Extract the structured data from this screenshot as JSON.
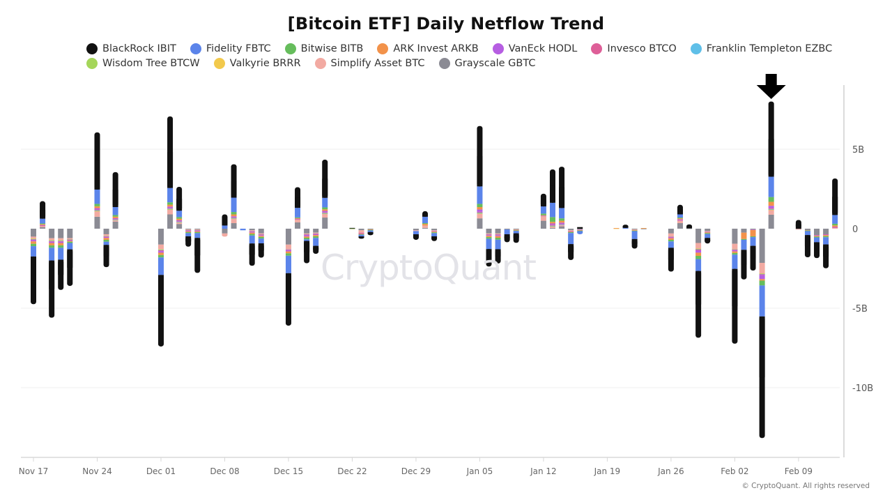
{
  "chart_data": {
    "type": "bar",
    "stacked": true,
    "title": "[Bitcoin ETF] Daily Netflow Trend",
    "xlabel": "",
    "ylabel": "",
    "ylim": [
      -14,
      8.5
    ],
    "y_ticks": [
      {
        "value": 5,
        "label": "5B"
      },
      {
        "value": 0,
        "label": "0"
      },
      {
        "value": -5,
        "label": "-5B"
      },
      {
        "value": -10,
        "label": "-10B"
      }
    ],
    "y_axis_position": "right",
    "x_ticks": [
      {
        "date": "11-17",
        "label": "Nov 17"
      },
      {
        "date": "11-24",
        "label": "Nov 24"
      },
      {
        "date": "12-01",
        "label": "Dec 01"
      },
      {
        "date": "12-08",
        "label": "Dec 08"
      },
      {
        "date": "12-15",
        "label": "Dec 15"
      },
      {
        "date": "12-22",
        "label": "Dec 22"
      },
      {
        "date": "12-29",
        "label": "Dec 29"
      },
      {
        "date": "01-05",
        "label": "Jan 05"
      },
      {
        "date": "01-12",
        "label": "Jan 12"
      },
      {
        "date": "01-19",
        "label": "Jan 19"
      },
      {
        "date": "01-26",
        "label": "Jan 26"
      },
      {
        "date": "02-02",
        "label": "Feb 02"
      },
      {
        "date": "02-09",
        "label": "Feb 09"
      }
    ],
    "grid": true,
    "legend_position": "top-left",
    "units": "USD",
    "series": [
      {
        "name": "BlackRock IBIT",
        "color": "#111111"
      },
      {
        "name": "Fidelity FBTC",
        "color": "#5b84ea"
      },
      {
        "name": "Bitwise BITB",
        "color": "#66bd5c"
      },
      {
        "name": "ARK Invest ARKB",
        "color": "#f2924a"
      },
      {
        "name": "VanEck HODL",
        "color": "#b65ee2"
      },
      {
        "name": "Invesco BTCO",
        "color": "#de5f98"
      },
      {
        "name": "Franklin Templeton EZBC",
        "color": "#5fbfe8"
      },
      {
        "name": "Wisdom Tree BTCW",
        "color": "#a5d65a"
      },
      {
        "name": "Valkyrie BRRR",
        "color": "#f2c94c"
      },
      {
        "name": "Simplify Asset BTC",
        "color": "#f2aaa2"
      },
      {
        "name": "Grayscale GBTC",
        "color": "#8b8b94"
      }
    ],
    "value_columns": [
      "date",
      "BlackRock IBIT",
      "Fidelity FBTC",
      "Bitwise BITB",
      "ARK Invest ARKB",
      "VanEck HODL",
      "Invesco BTCO",
      "Franklin Templeton EZBC",
      "Wisdom Tree BTCW",
      "Valkyrie BRRR",
      "Simplify Asset BTC",
      "Grayscale GBTC"
    ],
    "rows": [
      [
        "11-17",
        -3.0,
        -0.65,
        -0.15,
        -0.15,
        -0.08,
        -0.04,
        -0.02,
        -0.02,
        -0.02,
        -0.12,
        -0.5
      ],
      [
        "11-18",
        1.1,
        0.3,
        0.05,
        0.05,
        0.03,
        0.02,
        0,
        0,
        0,
        0.08,
        0.1
      ],
      [
        "11-19",
        -3.6,
        -0.8,
        -0.15,
        -0.15,
        -0.08,
        -0.04,
        -0.02,
        -0.02,
        -0.02,
        -0.12,
        -0.6
      ],
      [
        "11-20",
        -1.9,
        -0.75,
        -0.15,
        -0.15,
        -0.08,
        -0.04,
        -0.02,
        -0.02,
        -0.02,
        -0.12,
        -0.6
      ],
      [
        "11-21",
        -2.3,
        -0.4,
        -0.08,
        -0.05,
        -0.05,
        -0.03,
        -0.01,
        -0.01,
        -0.01,
        -0.06,
        -0.6
      ],
      [
        "11-24",
        3.6,
        0.9,
        0.15,
        0.12,
        0.08,
        0.05,
        0.02,
        0.02,
        0.02,
        0.35,
        0.75
      ],
      [
        "11-25",
        -1.4,
        -0.2,
        -0.12,
        -0.12,
        -0.06,
        -0.04,
        -0.01,
        -0.01,
        -0.01,
        -0.1,
        -0.35
      ],
      [
        "11-26",
        2.2,
        0.5,
        0.1,
        0.1,
        0.05,
        0.03,
        0.01,
        0.01,
        0.01,
        0.1,
        0.45
      ],
      [
        "12-01",
        -4.5,
        -1.1,
        -0.15,
        -0.15,
        -0.1,
        -0.05,
        -0.02,
        -0.02,
        -0.02,
        -0.3,
        -1.0
      ],
      [
        "12-02",
        4.5,
        0.9,
        0.15,
        0.12,
        0.08,
        0.05,
        0.02,
        0.02,
        0.02,
        0.3,
        0.9
      ],
      [
        "12-03",
        1.5,
        0.4,
        0.1,
        0.1,
        0.06,
        0.04,
        0.01,
        0.01,
        0.01,
        0.1,
        0.3
      ],
      [
        "12-04",
        -0.65,
        -0.2,
        -0.06,
        -0.05,
        -0.04,
        -0.03,
        -0.01,
        0,
        0,
        -0.04,
        -0.05
      ],
      [
        "12-05",
        -2.2,
        -0.3,
        -0.06,
        -0.05,
        -0.04,
        -0.03,
        -0.01,
        0,
        0,
        -0.04,
        -0.05
      ],
      [
        "12-08",
        0.7,
        0.2,
        0,
        0,
        0,
        0,
        0,
        0,
        0,
        -0.2,
        -0.3
      ],
      [
        "12-09",
        2.1,
        0.9,
        0.15,
        0.12,
        0.06,
        0.04,
        0.01,
        0.01,
        0.01,
        0.3,
        0.35
      ],
      [
        "12-10",
        0,
        -0.1,
        0,
        0,
        0,
        0,
        0,
        0,
        0,
        0,
        0
      ],
      [
        "12-11",
        -1.4,
        -0.5,
        -0.1,
        -0.08,
        -0.05,
        -0.04,
        -0.01,
        0,
        0,
        -0.05,
        -0.1
      ],
      [
        "12-12",
        -0.9,
        -0.3,
        -0.1,
        -0.07,
        -0.05,
        -0.04,
        -0.01,
        0,
        0,
        -0.05,
        -0.3
      ],
      [
        "12-15",
        -3.3,
        -1.1,
        -0.15,
        -0.12,
        -0.08,
        -0.04,
        -0.01,
        0,
        0,
        -0.3,
        -1.0
      ],
      [
        "12-16",
        1.3,
        0.6,
        0.05,
        0.03,
        0.02,
        0.01,
        0,
        0,
        0,
        0.2,
        0.4
      ],
      [
        "12-17",
        -1.4,
        -0.1,
        -0.1,
        -0.08,
        -0.08,
        -0.05,
        -0.01,
        0,
        0,
        -0.05,
        -0.3
      ],
      [
        "12-18",
        -0.5,
        -0.5,
        -0.1,
        -0.08,
        -0.05,
        -0.04,
        -0.01,
        0,
        0,
        -0.05,
        -0.25
      ],
      [
        "12-19",
        2.4,
        0.6,
        0.12,
        0.1,
        0.08,
        0.05,
        0.02,
        0.01,
        0.01,
        0.25,
        0.7
      ],
      [
        "12-22",
        0.03,
        0,
        0.01,
        0.01,
        0,
        0,
        0,
        0,
        0,
        0,
        0
      ],
      [
        "12-23",
        -0.15,
        -0.1,
        -0.03,
        -0.03,
        -0.02,
        -0.05,
        0,
        0,
        0,
        -0.15,
        -0.1
      ],
      [
        "12-24",
        -0.2,
        -0.1,
        -0.03,
        -0.03,
        0,
        0,
        0,
        0,
        0,
        0,
        -0.05
      ],
      [
        "12-29",
        -0.35,
        -0.2,
        0,
        0,
        0,
        0,
        0,
        0,
        0,
        -0.05,
        -0.1
      ],
      [
        "12-30",
        0.35,
        0.4,
        0.05,
        0.1,
        0,
        0,
        0,
        0,
        0,
        0.15,
        0.05
      ],
      [
        "12-31",
        -0.3,
        -0.2,
        -0.05,
        -0.05,
        -0.03,
        0,
        0,
        0,
        0,
        -0.05,
        -0.1
      ],
      [
        "01-05",
        3.8,
        1.1,
        0.2,
        0.15,
        0.15,
        0.05,
        0.02,
        0.02,
        0.02,
        0.3,
        0.65
      ],
      [
        "01-06",
        -1.1,
        -0.65,
        -0.1,
        -0.08,
        -0.05,
        -0.04,
        -0.01,
        0,
        0,
        -0.05,
        -0.3
      ],
      [
        "01-07",
        -0.9,
        -0.6,
        -0.12,
        -0.1,
        -0.06,
        -0.05,
        -0.01,
        0,
        0,
        -0.05,
        -0.3
      ],
      [
        "01-08",
        -0.5,
        -0.3,
        0,
        0,
        0,
        0,
        0,
        0,
        0,
        0,
        -0.05
      ],
      [
        "01-09",
        -0.6,
        -0.15,
        -0.03,
        -0.03,
        0,
        0,
        0,
        0,
        0,
        -0.03,
        -0.05
      ],
      [
        "01-12",
        0.8,
        0.45,
        0.1,
        0.03,
        0.02,
        0,
        0,
        0,
        0,
        0.3,
        0.5
      ],
      [
        "01-13",
        2.1,
        0.9,
        0.3,
        0.1,
        0.08,
        0.06,
        0.02,
        0.01,
        0.01,
        0.1,
        0.05
      ],
      [
        "01-14",
        2.6,
        0.65,
        0.15,
        0.12,
        0.08,
        0.04,
        0.01,
        0,
        0,
        0.1,
        0.15
      ],
      [
        "01-15",
        -1.0,
        -0.7,
        -0.05,
        -0.03,
        -0.02,
        -0.02,
        0,
        0,
        0,
        -0.05,
        -0.1
      ],
      [
        "01-16",
        0.1,
        -0.2,
        -0.03,
        -0.03,
        -0.02,
        0,
        0,
        0,
        0,
        -0.02,
        -0.05
      ],
      [
        "01-20",
        0,
        0,
        0,
        0.02,
        0,
        0,
        0,
        0,
        0.02,
        0,
        0
      ],
      [
        "01-21",
        0.2,
        0.05,
        0,
        0,
        0,
        0,
        0,
        0,
        0,
        0,
        0
      ],
      [
        "01-22",
        -0.6,
        -0.5,
        -0.03,
        -0.03,
        0,
        0,
        0,
        0,
        0,
        -0.04,
        -0.05
      ],
      [
        "01-23",
        0,
        0,
        0,
        0.02,
        0,
        0,
        0,
        0,
        0.02,
        0,
        -0.02
      ],
      [
        "01-26",
        -1.5,
        -0.4,
        -0.1,
        -0.1,
        -0.05,
        -0.04,
        -0.01,
        0,
        0,
        -0.2,
        -0.3
      ],
      [
        "01-27",
        0.6,
        0.2,
        0.05,
        0.06,
        0.05,
        0.04,
        0,
        0,
        0,
        0.15,
        0.35
      ],
      [
        "01-28",
        0.25,
        0,
        0,
        0,
        0,
        0,
        0,
        0,
        0,
        0,
        0.02
      ],
      [
        "01-29",
        -4.2,
        -0.75,
        -0.2,
        -0.2,
        -0.15,
        -0.05,
        -0.02,
        -0.02,
        -0.02,
        -0.35,
        -0.9
      ],
      [
        "01-30",
        -0.35,
        -0.25,
        -0.05,
        -0.05,
        -0.03,
        0,
        0,
        0,
        0,
        -0.05,
        -0.15
      ],
      [
        "02-02",
        -4.7,
        -0.9,
        -0.1,
        -0.1,
        -0.08,
        -0.04,
        -0.01,
        -0.01,
        -0.01,
        -0.33,
        -0.95
      ],
      [
        "02-03",
        -1.86,
        -0.63,
        -0.05,
        -0.4,
        0,
        0,
        0,
        0,
        0,
        0,
        -0.25
      ],
      [
        "02-04",
        -1.55,
        -0.55,
        -0.05,
        -0.4,
        -0.03,
        0,
        0,
        0,
        0,
        0,
        -0.05
      ],
      [
        "02-05",
        -7.65,
        -1.95,
        -0.3,
        -0.1,
        -0.25,
        -0.05,
        -0.02,
        -0.02,
        -0.02,
        -0.66,
        -2.15
      ],
      [
        "02-06",
        4.73,
        1.28,
        0.3,
        0.25,
        0.15,
        0.05,
        0.02,
        0.02,
        0.02,
        0.3,
        0.88
      ],
      [
        "02-09",
        0.55,
        0,
        0,
        0,
        0,
        0,
        0,
        0,
        0,
        -0.03,
        -0.02
      ],
      [
        "02-10",
        -1.4,
        -0.25,
        -0.03,
        -0.02,
        0,
        0,
        0,
        0,
        0,
        0,
        -0.1
      ],
      [
        "02-11",
        -1.0,
        -0.3,
        -0.05,
        -0.05,
        -0.03,
        -0.02,
        0,
        0,
        0,
        0,
        -0.4
      ],
      [
        "02-12",
        -1.5,
        -0.45,
        -0.07,
        -0.07,
        -0.03,
        -0.02,
        0,
        0,
        0,
        0,
        -0.35
      ],
      [
        "02-13",
        2.3,
        0.55,
        0.1,
        0.1,
        0.03,
        0.03,
        0,
        0,
        0,
        0.05,
        0
      ]
    ],
    "annotations": [
      {
        "type": "arrow-down",
        "date": "02-06",
        "icon": "arrow-down-icon"
      }
    ]
  },
  "watermark": "CryptoQuant",
  "copyright": "© CryptoQuant. All rights reserved"
}
